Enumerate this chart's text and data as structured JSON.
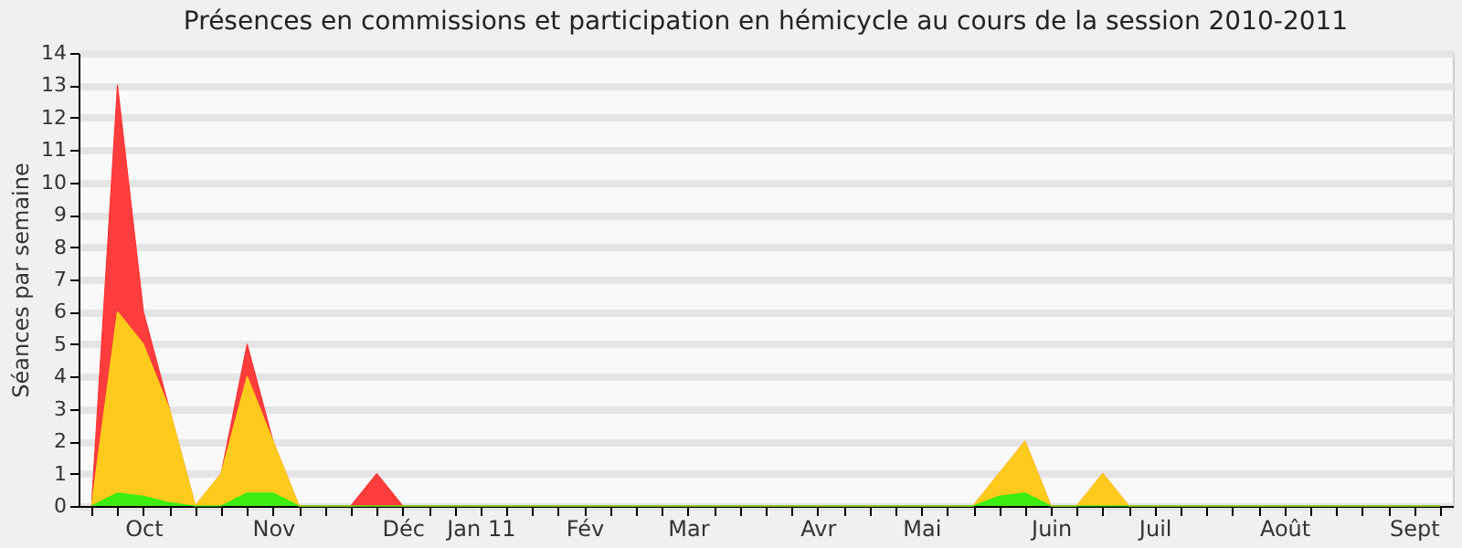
{
  "chart_data": {
    "type": "area",
    "title": "Présences en commissions et participation en hémicycle au cours de la session 2010-2011",
    "ylabel": "Séances par semaine",
    "categories": [
      null,
      null,
      "Oct",
      null,
      null,
      null,
      null,
      "Nov",
      null,
      null,
      null,
      null,
      "Déc",
      null,
      null,
      "Jan 11",
      null,
      null,
      null,
      "Fév",
      null,
      null,
      null,
      "Mar",
      null,
      null,
      null,
      null,
      "Avr",
      null,
      null,
      null,
      "Mai",
      null,
      null,
      null,
      null,
      "Juin",
      null,
      null,
      null,
      "Juil",
      null,
      null,
      null,
      null,
      "Août",
      null,
      null,
      null,
      null,
      "Sept",
      null
    ],
    "series": [
      {
        "color": "#ff3333",
        "values": [
          0,
          13,
          6,
          3,
          0,
          1,
          5,
          2,
          0,
          0,
          0,
          1,
          0,
          0,
          0,
          0,
          0,
          0,
          0,
          0,
          0,
          0,
          0,
          0,
          0,
          0,
          0,
          0,
          0,
          0,
          0,
          0,
          0,
          0,
          0,
          1,
          2,
          0,
          0,
          1,
          0,
          0,
          0,
          0,
          0,
          0,
          0,
          0,
          0,
          0,
          0,
          0,
          0
        ]
      },
      {
        "color": "#ffd21a",
        "values": [
          0,
          6,
          5,
          3,
          0,
          1,
          4,
          2,
          0,
          0,
          0,
          0,
          0,
          0,
          0,
          0,
          0,
          0,
          0,
          0,
          0,
          0,
          0,
          0,
          0,
          0,
          0,
          0,
          0,
          0,
          0,
          0,
          0,
          0,
          0,
          1,
          2,
          0,
          0,
          1,
          0,
          0,
          0,
          0,
          0,
          0,
          0,
          0,
          0,
          0,
          0,
          0,
          0
        ]
      },
      {
        "color": "#33ee11",
        "values": [
          0,
          0.4,
          0.3,
          0.1,
          0,
          0,
          0.4,
          0.4,
          0,
          0,
          0,
          0,
          0,
          0,
          0,
          0,
          0,
          0,
          0,
          0,
          0,
          0,
          0,
          0,
          0,
          0,
          0,
          0,
          0,
          0,
          0,
          0,
          0,
          0,
          0,
          0.3,
          0.4,
          0,
          0,
          0,
          0,
          0,
          0,
          0,
          0,
          0,
          0,
          0,
          0,
          0,
          0,
          0,
          0
        ]
      }
    ],
    "ylim": [
      0,
      14
    ],
    "yticks": [
      0,
      1,
      2,
      3,
      4,
      5,
      6,
      7,
      8,
      9,
      10,
      11,
      12,
      13,
      14
    ],
    "grid": "y"
  }
}
